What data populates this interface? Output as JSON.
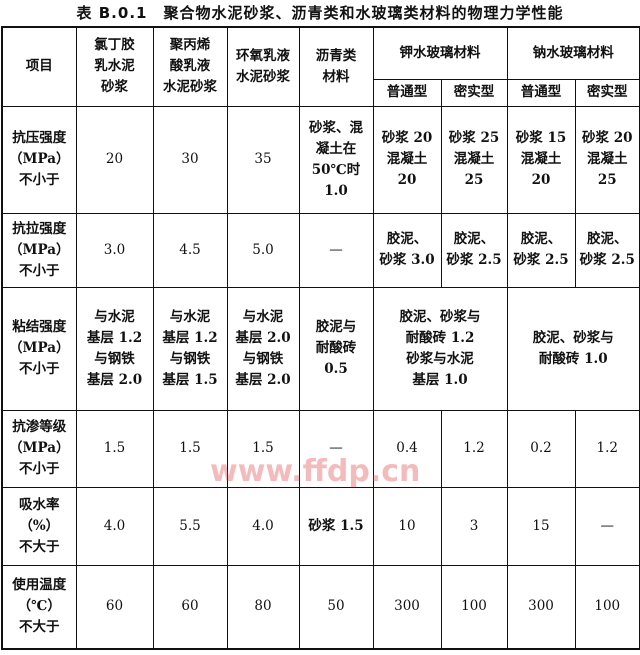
{
  "title": "表 B.0.1　聚合物水泥砂浆、沥青类和水玻璃类材料的物理力学性能",
  "header": {
    "item": "项目",
    "c1": "氯丁胶\n乳水泥\n砂浆",
    "c2": "聚丙烯\n酸乳液\n水泥砂浆",
    "c3": "环氧乳液\n水泥砂浆",
    "c4": "沥青类\n材料",
    "k": "钾水玻璃材料",
    "na": "钠水玻璃材料",
    "k1": "普通型",
    "k2": "密实型",
    "na1": "普通型",
    "na2": "密实型"
  },
  "rows": [
    {
      "item": "抗压强度\n（MPa）\n不小于",
      "c1": "20",
      "c2": "30",
      "c3": "35",
      "c4": "砂浆、混\n凝土在\n50℃时\n1.0",
      "k1": "砂浆 20\n混凝土\n20",
      "k2": "砂浆 25\n混凝土\n25",
      "na1": "砂浆 15\n混凝土\n20",
      "na2": "砂浆 20\n混凝土\n25"
    },
    {
      "item": "抗拉强度\n（MPa）\n不小于",
      "c1": "3.0",
      "c2": "4.5",
      "c3": "5.0",
      "c4": "—",
      "k1": "胶泥、\n砂浆 3.0",
      "k2": "胶泥、\n砂浆 2.5",
      "na1": "胶泥、\n砂浆 2.5",
      "na2": "胶泥、\n砂浆 2.5"
    },
    {
      "item": "粘结强度\n（MPa）\n不小于",
      "c1": "与水泥\n基层 1.2\n与钢铁\n基层 2.0",
      "c2": "与水泥\n基层 1.2\n与钢铁\n基层 1.5",
      "c3": "与水泥\n基层 2.0\n与钢铁\n基层 2.0",
      "c4": "胶泥与\n耐酸砖\n0.5",
      "k": "胶泥、砂浆与\n耐酸砖 1.2\n砂浆与水泥\n基层 1.0",
      "na": "胶泥、砂浆与\n耐酸砖 1.0"
    },
    {
      "item": "抗渗等级\n（MPa）\n不小于",
      "c1": "1.5",
      "c2": "1.5",
      "c3": "1.5",
      "c4": "—",
      "k1": "0.4",
      "k2": "1.2",
      "na1": "0.2",
      "na2": "1.2"
    },
    {
      "item": "吸水率\n（%）\n不大于",
      "c1": "4.0",
      "c2": "5.5",
      "c3": "4.0",
      "c4": "砂浆 1.5",
      "k1": "10",
      "k2": "3",
      "na1": "15",
      "na2": "—"
    },
    {
      "item": "使用温度\n（℃）\n不大于",
      "c1": "60",
      "c2": "60",
      "c3": "80",
      "c4": "50",
      "k1": "300",
      "k2": "100",
      "na1": "300",
      "na2": "100"
    }
  ],
  "watermark": "www.ffdp.cn"
}
